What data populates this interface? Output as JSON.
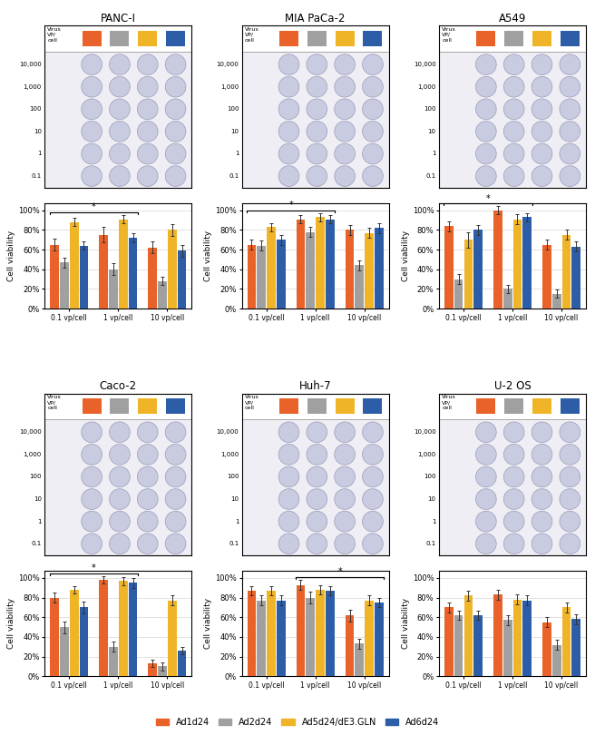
{
  "chart_data": [
    {
      "type": "bar",
      "title": "PANC-I",
      "categories": [
        "0.1 vp/cell",
        "1 vp/cell",
        "10 vp/cell"
      ],
      "series": [
        {
          "name": "Ad1d24",
          "color": "#E8622A",
          "values": [
            65,
            75,
            62
          ],
          "errors": [
            6,
            8,
            6
          ]
        },
        {
          "name": "Ad2d24",
          "color": "#A0A0A0",
          "values": [
            47,
            40,
            28
          ],
          "errors": [
            5,
            6,
            4
          ]
        },
        {
          "name": "Ad5d24/dE3.GLN",
          "color": "#F0B429",
          "values": [
            88,
            91,
            80
          ],
          "errors": [
            4,
            4,
            6
          ]
        },
        {
          "name": "Ad6d24",
          "color": "#2E5DA8",
          "values": [
            64,
            72,
            59
          ],
          "errors": [
            4,
            5,
            6
          ]
        }
      ],
      "ylabel": "Cell viability",
      "ylim": [
        0,
        107
      ],
      "yticks": [
        {
          "value": 0,
          "label": "0%"
        },
        {
          "value": 20,
          "label": "20%"
        },
        {
          "value": 40,
          "label": "40%"
        },
        {
          "value": 60,
          "label": "60%"
        },
        {
          "value": 80,
          "label": "80%"
        },
        {
          "value": 100,
          "label": "100%"
        }
      ],
      "grid": true,
      "annotations": [
        {
          "text": "*",
          "categories": [
            "0.1 vp/cell",
            "1 vp/cell"
          ]
        }
      ],
      "row_labels": [
        "10,000",
        "1,000",
        "100",
        "10",
        "1",
        "0.1"
      ],
      "corner_label": "Virus\nVP/\ncell"
    },
    {
      "type": "bar",
      "title": "MIA PaCa-2",
      "categories": [
        "0.1 vp/cell",
        "1 vp/cell",
        "10 vp/cell"
      ],
      "series": [
        {
          "name": "Ad1d24",
          "color": "#E8622A",
          "values": [
            65,
            91,
            80
          ],
          "errors": [
            5,
            4,
            5
          ]
        },
        {
          "name": "Ad2d24",
          "color": "#A0A0A0",
          "values": [
            64,
            78,
            44
          ],
          "errors": [
            5,
            5,
            5
          ]
        },
        {
          "name": "Ad5d24/dE3.GLN",
          "color": "#F0B429",
          "values": [
            83,
            93,
            77
          ],
          "errors": [
            4,
            4,
            5
          ]
        },
        {
          "name": "Ad6d24",
          "color": "#2E5DA8",
          "values": [
            70,
            91,
            82
          ],
          "errors": [
            5,
            4,
            5
          ]
        }
      ],
      "ylabel": "Cell viability",
      "ylim": [
        0,
        107
      ],
      "yticks": [
        {
          "value": 0,
          "label": "0%"
        },
        {
          "value": 20,
          "label": "20%"
        },
        {
          "value": 40,
          "label": "40%"
        },
        {
          "value": 60,
          "label": "60%"
        },
        {
          "value": 80,
          "label": "80%"
        },
        {
          "value": 100,
          "label": "100%"
        }
      ],
      "grid": true,
      "annotations": [
        {
          "text": "*",
          "categories": [
            "0.1 vp/cell",
            "1 vp/cell"
          ]
        }
      ],
      "row_labels": [
        "10,000",
        "1,000",
        "100",
        "10",
        "1",
        "0.1"
      ],
      "corner_label": "Virus\nVP/\ncell"
    },
    {
      "type": "bar",
      "title": "A549",
      "categories": [
        "0.1 vp/cell",
        "1 vp/cell",
        "10 vp/cell"
      ],
      "series": [
        {
          "name": "Ad1d24",
          "color": "#E8622A",
          "values": [
            84,
            100,
            65
          ],
          "errors": [
            5,
            4,
            5
          ]
        },
        {
          "name": "Ad2d24",
          "color": "#A0A0A0",
          "values": [
            30,
            20,
            15
          ],
          "errors": [
            5,
            4,
            4
          ]
        },
        {
          "name": "Ad5d24/dE3.GLN",
          "color": "#F0B429",
          "values": [
            70,
            91,
            75
          ],
          "errors": [
            8,
            5,
            5
          ]
        },
        {
          "name": "Ad6d24",
          "color": "#2E5DA8",
          "values": [
            80,
            93,
            63
          ],
          "errors": [
            5,
            4,
            5
          ]
        }
      ],
      "ylabel": "Cell viability",
      "ylim": [
        0,
        107
      ],
      "yticks": [
        {
          "value": 0,
          "label": "0%"
        },
        {
          "value": 20,
          "label": "20%"
        },
        {
          "value": 40,
          "label": "40%"
        },
        {
          "value": 60,
          "label": "60%"
        },
        {
          "value": 80,
          "label": "80%"
        },
        {
          "value": 100,
          "label": "100%"
        }
      ],
      "grid": true,
      "annotations": [
        {
          "text": "*",
          "categories": [
            "0.1 vp/cell",
            "1 vp/cell"
          ]
        }
      ],
      "row_labels": [
        "10,000",
        "1,000",
        "100",
        "10",
        "1",
        "0.1"
      ],
      "corner_label": "Virus\nVP/\ncell"
    },
    {
      "type": "bar",
      "title": "Caco-2",
      "categories": [
        "0.1 vp/cell",
        "1 vp/cell",
        "10 vp/cell"
      ],
      "series": [
        {
          "name": "Ad1d24",
          "color": "#E8622A",
          "values": [
            80,
            98,
            13
          ],
          "errors": [
            5,
            4,
            4
          ]
        },
        {
          "name": "Ad2d24",
          "color": "#A0A0A0",
          "values": [
            50,
            30,
            10
          ],
          "errors": [
            6,
            5,
            4
          ]
        },
        {
          "name": "Ad5d24/dE3.GLN",
          "color": "#F0B429",
          "values": [
            88,
            97,
            77
          ],
          "errors": [
            4,
            4,
            5
          ]
        },
        {
          "name": "Ad6d24",
          "color": "#2E5DA8",
          "values": [
            70,
            95,
            26
          ],
          "errors": [
            6,
            5,
            4
          ]
        }
      ],
      "ylabel": "Cell viability",
      "ylim": [
        0,
        107
      ],
      "yticks": [
        {
          "value": 0,
          "label": "0%"
        },
        {
          "value": 20,
          "label": "20%"
        },
        {
          "value": 40,
          "label": "40%"
        },
        {
          "value": 60,
          "label": "60%"
        },
        {
          "value": 80,
          "label": "80%"
        },
        {
          "value": 100,
          "label": "100%"
        }
      ],
      "grid": true,
      "annotations": [
        {
          "text": "*",
          "categories": [
            "0.1 vp/cell",
            "1 vp/cell"
          ]
        }
      ],
      "row_labels": [
        "10,000",
        "1,000",
        "100",
        "10",
        "1",
        "0.1"
      ],
      "corner_label": "Virus\nVP/\ncell"
    },
    {
      "type": "bar",
      "title": "Huh-7",
      "categories": [
        "0.1 vp/cell",
        "1 vp/cell",
        "10 vp/cell"
      ],
      "series": [
        {
          "name": "Ad1d24",
          "color": "#E8622A",
          "values": [
            87,
            93,
            62
          ],
          "errors": [
            5,
            5,
            6
          ]
        },
        {
          "name": "Ad2d24",
          "color": "#A0A0A0",
          "values": [
            77,
            80,
            33
          ],
          "errors": [
            5,
            6,
            5
          ]
        },
        {
          "name": "Ad5d24/dE3.GLN",
          "color": "#F0B429",
          "values": [
            87,
            88,
            77
          ],
          "errors": [
            5,
            5,
            5
          ]
        },
        {
          "name": "Ad6d24",
          "color": "#2E5DA8",
          "values": [
            77,
            87,
            75
          ],
          "errors": [
            5,
            5,
            5
          ]
        }
      ],
      "ylabel": "Cell viability",
      "ylim": [
        0,
        107
      ],
      "yticks": [
        {
          "value": 0,
          "label": "0%"
        },
        {
          "value": 20,
          "label": "20%"
        },
        {
          "value": 40,
          "label": "40%"
        },
        {
          "value": 60,
          "label": "60%"
        },
        {
          "value": 80,
          "label": "80%"
        },
        {
          "value": 100,
          "label": "100%"
        }
      ],
      "grid": true,
      "annotations": [
        {
          "text": "*",
          "categories": [
            "1 vp/cell",
            "10 vp/cell"
          ]
        }
      ],
      "row_labels": [
        "10,000",
        "1,000",
        "100",
        "10",
        "1",
        "0.1"
      ],
      "corner_label": "Virus\nVP/\ncell"
    },
    {
      "type": "bar",
      "title": "U-2 OS",
      "categories": [
        "0.1 vp/cell",
        "1 vp/cell",
        "10 vp/cell"
      ],
      "series": [
        {
          "name": "Ad1d24",
          "color": "#E8622A",
          "values": [
            70,
            83,
            55
          ],
          "errors": [
            5,
            5,
            5
          ]
        },
        {
          "name": "Ad2d24",
          "color": "#A0A0A0",
          "values": [
            62,
            57,
            32
          ],
          "errors": [
            5,
            5,
            5
          ]
        },
        {
          "name": "Ad5d24/dE3.GLN",
          "color": "#F0B429",
          "values": [
            82,
            78,
            70
          ],
          "errors": [
            5,
            5,
            5
          ]
        },
        {
          "name": "Ad6d24",
          "color": "#2E5DA8",
          "values": [
            62,
            77,
            58
          ],
          "errors": [
            5,
            5,
            5
          ]
        }
      ],
      "ylabel": "Cell viability",
      "ylim": [
        0,
        107
      ],
      "yticks": [
        {
          "value": 0,
          "label": "0%"
        },
        {
          "value": 20,
          "label": "20%"
        },
        {
          "value": 40,
          "label": "40%"
        },
        {
          "value": 60,
          "label": "60%"
        },
        {
          "value": 80,
          "label": "80%"
        },
        {
          "value": 100,
          "label": "100%"
        }
      ],
      "grid": true,
      "annotations": [],
      "row_labels": [
        "10,000",
        "1,000",
        "100",
        "10",
        "1",
        "0.1"
      ],
      "corner_label": "Virus\nVP/\ncell"
    }
  ],
  "legend": "lower center"
}
